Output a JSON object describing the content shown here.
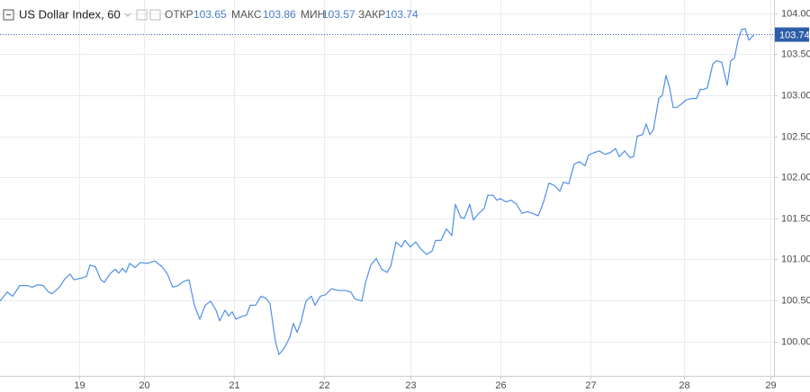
{
  "chart_data": {
    "type": "line",
    "title": "US Dollar Index, 60",
    "legend_values": [
      {
        "label": "ОТКР",
        "value": 103.65
      },
      {
        "label": "МАКС",
        "value": 103.86
      },
      {
        "label": "МИН",
        "value": 103.57
      },
      {
        "label": "ЗАКР",
        "value": 103.74
      }
    ],
    "last_value": 103.74,
    "grid": true,
    "xlim": [
      0,
      215
    ],
    "xticks": [
      {
        "value": 22,
        "label": "19"
      },
      {
        "value": 40,
        "label": "20"
      },
      {
        "value": 65,
        "label": "21"
      },
      {
        "value": 90,
        "label": "22"
      },
      {
        "value": 114,
        "label": "23"
      },
      {
        "value": 139,
        "label": "26"
      },
      {
        "value": 164,
        "label": "27"
      },
      {
        "value": 190,
        "label": "28"
      },
      {
        "value": 214,
        "label": "29"
      }
    ],
    "ylim": [
      99.58,
      104.16
    ],
    "yticks": [
      {
        "value": 100,
        "label": "100.00"
      },
      {
        "value": 100.5,
        "label": "100.50"
      },
      {
        "value": 101,
        "label": "101.00"
      },
      {
        "value": 101.5,
        "label": "101.50"
      },
      {
        "value": 102,
        "label": "102.00"
      },
      {
        "value": 102.5,
        "label": "102.50"
      },
      {
        "value": 103,
        "label": "103.00"
      },
      {
        "value": 103.5,
        "label": "103.50"
      },
      {
        "value": 104,
        "label": "104.00"
      }
    ],
    "series": [
      {
        "color": "#4f8fe6",
        "x": [
          0,
          2,
          3.5,
          5.5,
          7.5,
          9,
          10.5,
          12,
          13.5,
          14.5,
          16.5,
          18,
          19.5,
          20.5,
          22.5,
          24,
          25,
          26.5,
          28,
          29,
          30.5,
          32,
          33,
          34,
          35,
          36,
          37.5,
          39,
          41,
          43,
          45,
          46.5,
          48,
          49.5,
          51,
          52.5,
          54,
          55.5,
          57,
          58.5,
          60,
          61,
          62.5,
          63.5,
          64.5,
          65.5,
          67,
          68.5,
          69.5,
          71,
          72.5,
          74,
          75,
          76.5,
          77.5,
          79,
          80.5,
          81.5,
          82.5,
          83.5,
          85,
          86.5,
          87.5,
          89,
          90.5,
          92,
          94,
          96,
          97.5,
          98.5,
          100.5,
          101.5,
          103,
          104.5,
          106,
          107.5,
          108.5,
          110,
          111.5,
          112.5,
          114,
          115.5,
          117,
          118.5,
          120,
          121,
          122.5,
          124,
          125.5,
          126.5,
          128,
          129,
          130.5,
          131.5,
          133,
          134.5,
          135.5,
          137,
          138,
          139,
          140.5,
          142,
          143.5,
          145,
          146.5,
          148,
          149.5,
          151,
          152.5,
          154,
          155.5,
          156.5,
          158,
          159.5,
          161,
          162.5,
          163.5,
          165,
          166.5,
          168,
          169.5,
          171,
          172,
          173.5,
          175,
          176,
          177,
          178.5,
          179.5,
          180.5,
          181.5,
          183,
          184,
          185,
          186,
          187,
          188,
          189.5,
          190.5,
          192,
          193.5,
          194.5,
          195.5,
          196.5,
          198,
          199,
          200.5,
          202,
          203,
          204,
          205,
          206,
          207,
          208,
          209.5
        ],
        "values": [
          100.49,
          100.6,
          100.55,
          100.68,
          100.68,
          100.66,
          100.69,
          100.68,
          100.6,
          100.58,
          100.66,
          100.76,
          100.82,
          100.75,
          100.77,
          100.79,
          100.93,
          100.91,
          100.75,
          100.72,
          100.82,
          100.88,
          100.83,
          100.89,
          100.84,
          100.95,
          100.9,
          100.96,
          100.95,
          100.98,
          100.91,
          100.82,
          100.66,
          100.68,
          100.73,
          100.75,
          100.44,
          100.27,
          100.44,
          100.49,
          100.38,
          100.25,
          100.38,
          100.31,
          100.36,
          100.27,
          100.3,
          100.32,
          100.44,
          100.44,
          100.55,
          100.52,
          100.46,
          100.0,
          99.84,
          99.92,
          100.05,
          100.22,
          100.11,
          100.22,
          100.49,
          100.55,
          100.44,
          100.55,
          100.57,
          100.64,
          100.62,
          100.62,
          100.6,
          100.52,
          100.49,
          100.71,
          100.93,
          101.01,
          100.88,
          100.84,
          100.91,
          101.21,
          101.15,
          101.23,
          101.15,
          101.21,
          101.12,
          101.06,
          101.1,
          101.23,
          101.23,
          101.37,
          101.29,
          101.67,
          101.51,
          101.5,
          101.67,
          101.48,
          101.56,
          101.62,
          101.78,
          101.78,
          101.72,
          101.74,
          101.7,
          101.72,
          101.67,
          101.56,
          101.58,
          101.56,
          101.53,
          101.7,
          101.93,
          101.9,
          101.83,
          101.94,
          101.92,
          102.16,
          102.19,
          102.14,
          102.27,
          102.3,
          102.32,
          102.28,
          102.3,
          102.35,
          102.25,
          102.32,
          102.24,
          102.25,
          102.5,
          102.52,
          102.65,
          102.52,
          102.58,
          102.96,
          103.0,
          103.24,
          103.09,
          102.85,
          102.85,
          102.9,
          102.94,
          102.96,
          102.96,
          103.07,
          103.07,
          103.09,
          103.38,
          103.42,
          103.4,
          103.12,
          103.42,
          103.45,
          103.67,
          103.8,
          103.81,
          103.67,
          103.74
        ]
      }
    ]
  }
}
